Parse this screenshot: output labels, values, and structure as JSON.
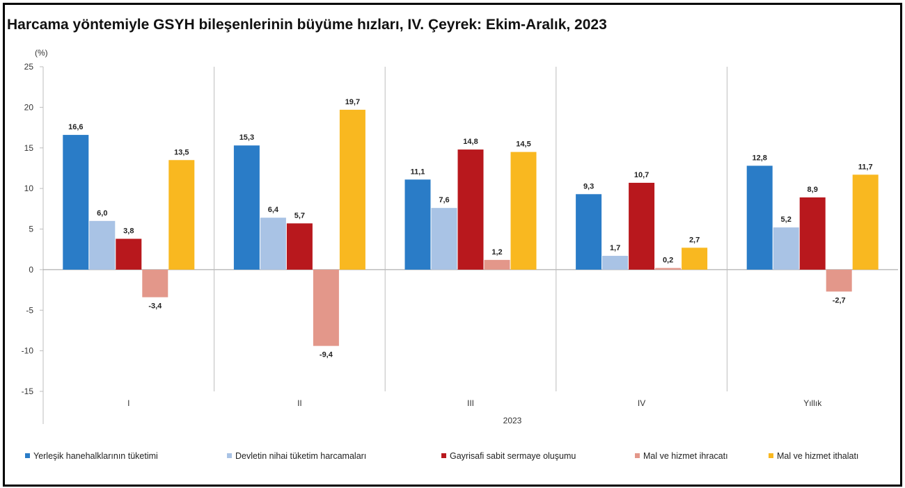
{
  "title": "Harcama yöntemiyle GSYH bileşenlerinin büyüme hızları, IV. Çeyrek: Ekim-Aralık, 2023",
  "chart_data": {
    "type": "bar",
    "unit_label": "(%)",
    "categories": [
      "I",
      "II",
      "III",
      "IV",
      "Yıllık"
    ],
    "x_group_label": "2023",
    "ylim": [
      -15,
      25
    ],
    "yticks": [
      25,
      20,
      15,
      10,
      5,
      0,
      -5,
      -10,
      -15
    ],
    "series": [
      {
        "name": "Yerleşik hanehalklarının tüketimi",
        "color": "#2a7cc7",
        "values": [
          16.6,
          15.3,
          11.1,
          9.3,
          12.8
        ],
        "labels": [
          "16,6",
          "15,3",
          "11,1",
          "9,3",
          "12,8"
        ]
      },
      {
        "name": "Devletin nihai tüketim harcamaları",
        "color": "#a9c3e5",
        "values": [
          6.0,
          6.4,
          7.6,
          1.7,
          5.2
        ],
        "labels": [
          "6,0",
          "6,4",
          "7,6",
          "1,7",
          "5,2"
        ]
      },
      {
        "name": "Gayrisafi sabit sermaye oluşumu",
        "color": "#b8181d",
        "values": [
          3.8,
          5.7,
          14.8,
          10.7,
          8.9
        ],
        "labels": [
          "3,8",
          "5,7",
          "14,8",
          "10,7",
          "8,9"
        ]
      },
      {
        "name": "Mal ve hizmet ihracatı",
        "color": "#e3978a",
        "values": [
          -3.4,
          -9.4,
          1.2,
          0.2,
          -2.7
        ],
        "labels": [
          "-3,4",
          "-9,4",
          "1,2",
          "0,2",
          "-2,7"
        ]
      },
      {
        "name": "Mal ve hizmet ithalatı",
        "color": "#f9b820",
        "values": [
          13.5,
          19.7,
          14.5,
          2.7,
          11.7
        ],
        "labels": [
          "13,5",
          "19,7",
          "14,5",
          "2,7",
          "11,7"
        ]
      }
    ],
    "grid": false,
    "legend_position": "bottom"
  }
}
